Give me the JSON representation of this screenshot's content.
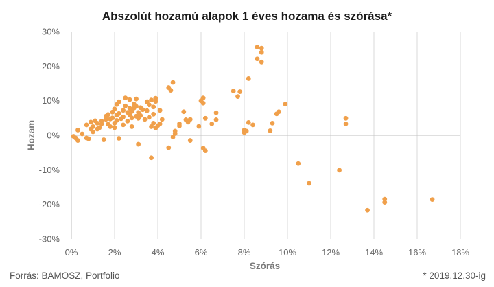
{
  "chart_data": {
    "type": "scatter",
    "title": "Abszolút hozamú alapok 1 éves hozama és szórása*",
    "xlabel": "Szórás",
    "ylabel": "Hozam",
    "xlim": [
      0,
      18
    ],
    "ylim": [
      -30,
      30
    ],
    "x_ticks": [
      0,
      2,
      4,
      6,
      8,
      10,
      12,
      14,
      16,
      18
    ],
    "x_tick_labels": [
      "0%",
      "2%",
      "4%",
      "6%",
      "8%",
      "10%",
      "12%",
      "14%",
      "16%",
      "18%"
    ],
    "y_ticks": [
      -30,
      -20,
      -10,
      0,
      10,
      20,
      30
    ],
    "y_tick_labels": [
      "-30%",
      "-20%",
      "-10%",
      "0%",
      "10%",
      "20%",
      "30%"
    ],
    "grid": "vertical",
    "point_color": "#f0a04b",
    "points": [
      [
        0.1,
        -0.3
      ],
      [
        0.2,
        -0.8
      ],
      [
        0.3,
        1.5
      ],
      [
        0.3,
        -1.5
      ],
      [
        0.5,
        0.4
      ],
      [
        0.7,
        -0.8
      ],
      [
        0.7,
        3.0
      ],
      [
        0.8,
        -1.0
      ],
      [
        0.9,
        1.8
      ],
      [
        0.9,
        3.8
      ],
      [
        1.0,
        1.0
      ],
      [
        1.0,
        2.5
      ],
      [
        1.1,
        4.2
      ],
      [
        1.2,
        1.8
      ],
      [
        1.2,
        3.5
      ],
      [
        1.3,
        2.2
      ],
      [
        1.4,
        3.3
      ],
      [
        1.4,
        4.1
      ],
      [
        1.5,
        -1.3
      ],
      [
        1.6,
        4.6
      ],
      [
        1.6,
        5.5
      ],
      [
        1.7,
        3.2
      ],
      [
        1.7,
        6.0
      ],
      [
        1.8,
        2.5
      ],
      [
        1.8,
        4.7
      ],
      [
        1.9,
        6.7
      ],
      [
        1.9,
        5.0
      ],
      [
        2.0,
        2.2
      ],
      [
        2.0,
        3.5
      ],
      [
        2.0,
        7.6
      ],
      [
        2.1,
        4.3
      ],
      [
        2.1,
        5.8
      ],
      [
        2.1,
        8.9
      ],
      [
        2.2,
        -0.9
      ],
      [
        2.2,
        9.7
      ],
      [
        2.2,
        6.3
      ],
      [
        2.3,
        4.8
      ],
      [
        2.4,
        3.0
      ],
      [
        2.4,
        5.3
      ],
      [
        2.4,
        7.2
      ],
      [
        2.5,
        8.5
      ],
      [
        2.5,
        10.8
      ],
      [
        2.6,
        4.1
      ],
      [
        2.6,
        6.6
      ],
      [
        2.7,
        5.9
      ],
      [
        2.7,
        7.8
      ],
      [
        2.7,
        10.3
      ],
      [
        2.8,
        2.5
      ],
      [
        2.8,
        5.0
      ],
      [
        2.8,
        6.9
      ],
      [
        2.9,
        7.9
      ],
      [
        2.9,
        9.0
      ],
      [
        3.0,
        5.5
      ],
      [
        3.0,
        8.4
      ],
      [
        3.0,
        10.5
      ],
      [
        3.1,
        4.9
      ],
      [
        3.1,
        6.6
      ],
      [
        3.1,
        -2.6
      ],
      [
        3.2,
        5.7
      ],
      [
        3.2,
        8.0
      ],
      [
        3.3,
        7.4
      ],
      [
        3.4,
        4.6
      ],
      [
        3.5,
        7.1
      ],
      [
        3.5,
        9.7
      ],
      [
        3.6,
        5.2
      ],
      [
        3.6,
        8.8
      ],
      [
        3.7,
        -6.5
      ],
      [
        3.7,
        2.5
      ],
      [
        3.7,
        10.2
      ],
      [
        3.8,
        3.5
      ],
      [
        3.8,
        6.1
      ],
      [
        3.8,
        8.2
      ],
      [
        3.9,
        2.1
      ],
      [
        3.9,
        9.8
      ],
      [
        3.9,
        10.7
      ],
      [
        4.0,
        2.8
      ],
      [
        4.1,
        3.3
      ],
      [
        4.1,
        7.2
      ],
      [
        4.2,
        4.6
      ],
      [
        4.5,
        -3.6
      ],
      [
        4.5,
        13.8
      ],
      [
        4.6,
        13.0
      ],
      [
        4.7,
        15.3
      ],
      [
        4.7,
        -0.5
      ],
      [
        4.8,
        0.5
      ],
      [
        4.8,
        1.2
      ],
      [
        5.0,
        2.7
      ],
      [
        5.0,
        3.3
      ],
      [
        5.2,
        6.8
      ],
      [
        5.3,
        4.5
      ],
      [
        5.4,
        3.8
      ],
      [
        5.5,
        4.6
      ],
      [
        5.5,
        -1.5
      ],
      [
        5.9,
        2.6
      ],
      [
        6.0,
        10.0
      ],
      [
        6.1,
        10.8
      ],
      [
        6.1,
        9.3
      ],
      [
        6.1,
        -3.7
      ],
      [
        6.2,
        -4.5
      ],
      [
        6.2,
        4.9
      ],
      [
        6.5,
        3.3
      ],
      [
        6.7,
        4.5
      ],
      [
        6.7,
        6.5
      ],
      [
        7.5,
        12.8
      ],
      [
        7.7,
        11.2
      ],
      [
        7.8,
        12.6
      ],
      [
        8.0,
        1.5
      ],
      [
        8.0,
        0.8
      ],
      [
        8.1,
        1.2
      ],
      [
        8.2,
        3.7
      ],
      [
        8.2,
        16.4
      ],
      [
        8.4,
        3.0
      ],
      [
        8.6,
        22.1
      ],
      [
        8.6,
        25.5
      ],
      [
        8.8,
        24.0
      ],
      [
        8.8,
        21.2
      ],
      [
        8.8,
        25.2
      ],
      [
        9.2,
        1.3
      ],
      [
        9.3,
        3.5
      ],
      [
        9.5,
        6.2
      ],
      [
        9.6,
        6.8
      ],
      [
        9.9,
        9.0
      ],
      [
        10.5,
        -8.2
      ],
      [
        11.0,
        -13.9
      ],
      [
        12.4,
        -10.1
      ],
      [
        12.7,
        4.9
      ],
      [
        12.7,
        3.3
      ],
      [
        13.7,
        -21.7
      ],
      [
        14.5,
        -18.5
      ],
      [
        14.5,
        -19.4
      ],
      [
        16.7,
        -18.6
      ]
    ]
  },
  "footer": {
    "source": "Forrás: BAMOSZ, Portfolio",
    "note": "* 2019.12.30-ig"
  }
}
